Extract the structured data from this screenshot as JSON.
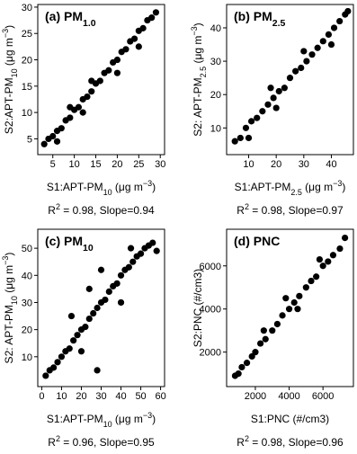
{
  "chart_data": [
    {
      "type": "scatter",
      "title": [
        {
          "text": "(a) PM"
        },
        {
          "text": "1.0",
          "baseline": "sub"
        }
      ],
      "xlabel": [
        {
          "text": "S1:APT-PM"
        },
        {
          "text": "10",
          "baseline": "sub"
        },
        {
          "text": "  (μg m"
        },
        {
          "text": "−3",
          "baseline": "super"
        },
        {
          "text": ")"
        }
      ],
      "ylabel": [
        {
          "text": "S2:APT-PM"
        },
        {
          "text": "10",
          "baseline": "sub"
        },
        {
          "text": "  (μg m"
        },
        {
          "text": "−3",
          "baseline": "super"
        },
        {
          "text": ")"
        }
      ],
      "stats": [
        {
          "text": "R"
        },
        {
          "text": "2",
          "baseline": "super"
        },
        {
          "text": " = 0.98, Slope=0.94"
        }
      ],
      "color": "#000000",
      "xlim": [
        1.5,
        31
      ],
      "ylim": [
        2,
        30.5
      ],
      "xticks": [
        5,
        10,
        15,
        20,
        25,
        30
      ],
      "yticks": [
        5,
        10,
        15,
        20,
        25,
        30
      ],
      "series": [
        {
          "x": [
            3,
            4,
            5,
            6,
            7,
            8,
            9,
            10,
            11,
            12,
            13,
            14,
            15,
            16,
            17,
            18,
            19,
            20,
            21,
            22,
            23,
            24,
            25,
            26,
            27,
            28,
            29,
            6,
            12,
            20,
            25,
            14,
            9
          ],
          "values": [
            4,
            5,
            5.5,
            6.5,
            7,
            8.5,
            9,
            10.5,
            11,
            12.5,
            13,
            14,
            15.5,
            16,
            17.5,
            18,
            19.5,
            20,
            21.5,
            22,
            23.5,
            24,
            25.5,
            26,
            27.5,
            28,
            29,
            4.5,
            10,
            17.5,
            22.5,
            16,
            11
          ]
        }
      ]
    },
    {
      "type": "scatter",
      "title": [
        {
          "text": "(b) PM"
        },
        {
          "text": "2.5",
          "baseline": "sub"
        }
      ],
      "xlabel": [
        {
          "text": "S1:APT-PM"
        },
        {
          "text": "2.5",
          "baseline": "sub"
        },
        {
          "text": "  (μg m"
        },
        {
          "text": "−3",
          "baseline": "super"
        },
        {
          "text": ")"
        }
      ],
      "ylabel": [
        {
          "text": "S2: APT-PM"
        },
        {
          "text": "2.5",
          "baseline": "sub"
        },
        {
          "text": " (μg m"
        },
        {
          "text": "−3",
          "baseline": "super"
        },
        {
          "text": ")"
        }
      ],
      "stats": [
        {
          "text": "R"
        },
        {
          "text": "2",
          "baseline": "super"
        },
        {
          "text": " = 0.98, Slope=0.97"
        }
      ],
      "color": "#000000",
      "xlim": [
        2,
        48
      ],
      "ylim": [
        2,
        47
      ],
      "xticks": [
        10,
        20,
        30,
        40
      ],
      "yticks": [
        10,
        20,
        30,
        40
      ],
      "series": [
        {
          "x": [
            5,
            7,
            9,
            11,
            13,
            15,
            17,
            19,
            21,
            23,
            25,
            27,
            29,
            31,
            33,
            35,
            37,
            39,
            41,
            43,
            45,
            46,
            10,
            20,
            30,
            18,
            40
          ],
          "values": [
            6,
            7,
            10,
            12,
            13,
            15,
            17,
            19,
            21,
            22,
            25,
            27,
            28,
            30,
            32,
            34,
            36,
            38,
            40,
            42,
            44,
            45,
            7,
            16,
            33,
            22,
            35
          ]
        }
      ]
    },
    {
      "type": "scatter",
      "title": [
        {
          "text": "(c) PM"
        },
        {
          "text": "10",
          "baseline": "sub"
        }
      ],
      "xlabel": [
        {
          "text": "S1:APT-PM"
        },
        {
          "text": "10",
          "baseline": "sub"
        },
        {
          "text": " (μg m"
        },
        {
          "text": "−3",
          "baseline": "super"
        },
        {
          "text": ")"
        }
      ],
      "ylabel": [
        {
          "text": "S2: APT-PM"
        },
        {
          "text": "10",
          "baseline": "sub"
        },
        {
          "text": " (μg m"
        },
        {
          "text": "−3",
          "baseline": "super"
        },
        {
          "text": ")"
        }
      ],
      "stats": [
        {
          "text": "R"
        },
        {
          "text": "2",
          "baseline": "super"
        },
        {
          "text": " = 0.96, Slope=0.95"
        }
      ],
      "color": "#000000",
      "xlim": [
        -2,
        62
      ],
      "ylim": [
        -1,
        57
      ],
      "xticks": [
        0,
        10,
        20,
        30,
        40,
        50,
        60
      ],
      "yticks": [
        10,
        20,
        30,
        40,
        50
      ],
      "series": [
        {
          "x": [
            2,
            4,
            6,
            8,
            10,
            12,
            14,
            16,
            18,
            20,
            22,
            24,
            26,
            28,
            30,
            32,
            34,
            36,
            38,
            40,
            42,
            44,
            46,
            48,
            50,
            52,
            54,
            56,
            58,
            28,
            24,
            30,
            40,
            15,
            20,
            45
          ],
          "values": [
            3,
            5,
            6,
            8,
            10,
            12,
            13,
            16,
            18,
            20,
            21,
            24,
            26,
            28,
            30,
            31,
            34,
            36,
            37,
            40,
            42,
            43,
            45,
            47,
            48,
            50,
            51,
            52,
            49,
            5,
            35,
            42,
            30,
            25,
            12,
            50
          ]
        }
      ]
    },
    {
      "type": "scatter",
      "title": [
        {
          "text": "(d) PNC"
        }
      ],
      "xlabel": [
        {
          "text": "S1:PNC (#/cm3)"
        }
      ],
      "ylabel": [
        {
          "text": "S2:PNC (#/cm3)"
        }
      ],
      "stats": [
        {
          "text": "R"
        },
        {
          "text": "2",
          "baseline": "super"
        },
        {
          "text": " = 0.98, Slope=0.96"
        }
      ],
      "color": "#000000",
      "xlim": [
        300,
        7800
      ],
      "ylim": [
        400,
        7700
      ],
      "xticks": [
        2000,
        4000,
        6000
      ],
      "yticks": [
        2000,
        4000,
        6000
      ],
      "series": [
        {
          "x": [
            800,
            1000,
            1200,
            1500,
            1800,
            2000,
            2300,
            2600,
            3000,
            3300,
            3600,
            4000,
            4300,
            4600,
            5000,
            5300,
            5600,
            6000,
            6300,
            6600,
            7000,
            7300,
            2500,
            4500,
            5800,
            3800
          ],
          "values": [
            900,
            1000,
            1300,
            1500,
            1800,
            2000,
            2400,
            2600,
            3000,
            3300,
            3700,
            4000,
            4300,
            4600,
            5000,
            5300,
            5500,
            6000,
            6200,
            6500,
            6800,
            7300,
            3000,
            4000,
            6300,
            4500
          ]
        }
      ]
    }
  ]
}
